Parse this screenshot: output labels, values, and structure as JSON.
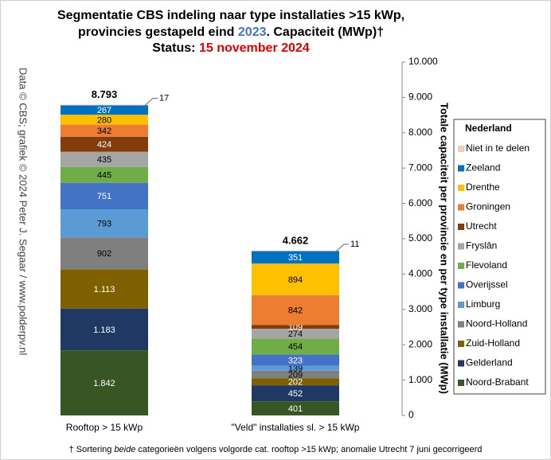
{
  "chart_data": {
    "type": "stacked-bar",
    "title": {
      "line1": "Segmentatie  CBS indeling  naar type installaties  >15 kWp,",
      "line2_a": "provincies  gestapeld eind ",
      "line2_year": "2023",
      "line2_b": ". Capaciteit (MWp)†",
      "status_label": "Status: ",
      "status_date": "15 november 2024"
    },
    "y_label": "Totale capaciteit per provincie en per type installatie (MWp)",
    "source": "Data © CBS; grafiek © 2024 Peter J. Segaar / www.polderpv.nl",
    "footnote": {
      "a": "† Sortering ",
      "b": "beide",
      "c": " categorieën volgens volgorde cat. rooftop >15 kWp; anomalie Utrecht 7 juni gecorrigeerd"
    },
    "legend_title": "Nederland",
    "categories": [
      "Rooftop > 15 kWp",
      "\"Veld\" installaties sl. > 15 kWp"
    ],
    "totals": {
      "values": [
        8793,
        4662
      ],
      "value_labels": [
        "8.793",
        "4.662"
      ]
    },
    "ylim": [
      0,
      10000
    ],
    "yticks": [
      0,
      {
        "value": 1000,
        "label": "1.000"
      },
      {
        "value": 2000,
        "label": "2.000"
      },
      {
        "value": 3000,
        "label": "3.000"
      },
      {
        "value": 4000,
        "label": "4.000"
      },
      {
        "value": 5000,
        "label": "5.000"
      },
      {
        "value": 6000,
        "label": "6.000"
      },
      {
        "value": 7000,
        "label": "7.000"
      },
      {
        "value": 8000,
        "label": "8.000"
      },
      {
        "value": 9000,
        "label": "9.000"
      },
      {
        "value": 10000,
        "label": "10.000"
      }
    ],
    "series": [
      {
        "name": "Noord-Brabant",
        "color": "#375623",
        "values": [
          1842,
          401
        ],
        "value_labels": [
          "1.842",
          "401"
        ]
      },
      {
        "name": "Gelderland",
        "color": "#203864",
        "values": [
          1183,
          452
        ],
        "value_labels": [
          "1.183",
          "452"
        ]
      },
      {
        "name": "Zuid-Holland",
        "color": "#7f6000",
        "values": [
          1113,
          202
        ],
        "value_labels": [
          "1.113",
          "202"
        ]
      },
      {
        "name": "Noord-Holland",
        "color": "#7f7f7f",
        "values": [
          902,
          209
        ]
      },
      {
        "name": "Limburg",
        "color": "#5b9bd5",
        "values": [
          793,
          139
        ]
      },
      {
        "name": "Overijssel",
        "color": "#4472c4",
        "values": [
          751,
          323
        ]
      },
      {
        "name": "Flevoland",
        "color": "#70ad47",
        "values": [
          445,
          454
        ]
      },
      {
        "name": "Fryslân",
        "color": "#a5a5a5",
        "values": [
          435,
          274
        ]
      },
      {
        "name": "Utrecht",
        "color": "#843c0c",
        "values": [
          424,
          109
        ]
      },
      {
        "name": "Groningen",
        "color": "#ed7d31",
        "values": [
          342,
          842
        ]
      },
      {
        "name": "Drenthe",
        "color": "#ffc000",
        "values": [
          280,
          894
        ]
      },
      {
        "name": "Zeeland",
        "color": "#0070c0",
        "values": [
          267,
          351
        ]
      },
      {
        "name": "Niet in te delen",
        "color": "#f8cbad",
        "values": [
          17,
          11
        ]
      }
    ]
  }
}
